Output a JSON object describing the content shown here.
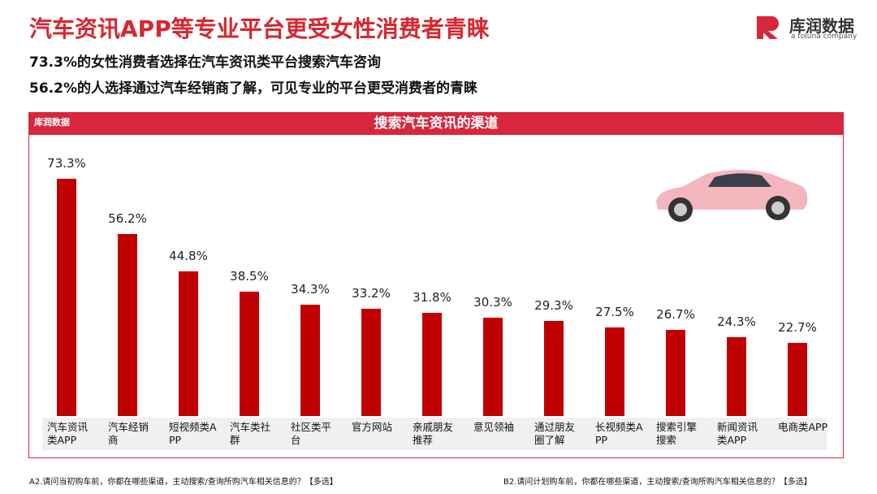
{
  "brand": {
    "name": "库润数据",
    "tagline": "a toluna company"
  },
  "chart_data": {
    "type": "bar",
    "title": "汽车资讯APP等专业平台更受女性消费者青睐",
    "subtitles": [
      "73.3%的女性消费者选择在汽车资讯类平台搜索汽车咨询",
      "56.2%的人选择通过汽车经销商了解，可见专业的平台更受消费者的青睐"
    ],
    "chart_title": "搜索汽车资讯的渠道",
    "categories": [
      "汽车资讯类APP",
      "汽车经销商",
      "短视频类APP",
      "汽车类社群",
      "社区类平台",
      "官方网站",
      "亲戚朋友推荐",
      "意见领袖",
      "通过朋友圈了解",
      "长视频类APP",
      "搜索引擎搜索",
      "新闻资讯类APP",
      "电商类APP"
    ],
    "values": [
      73.3,
      56.2,
      44.8,
      38.5,
      34.3,
      33.2,
      31.8,
      30.3,
      29.3,
      27.5,
      26.7,
      24.3,
      22.7
    ],
    "value_labels": [
      "73.3%",
      "56.2%",
      "44.8%",
      "38.5%",
      "34.3%",
      "33.2%",
      "31.8%",
      "30.3%",
      "29.3%",
      "27.5%",
      "26.7%",
      "24.3%",
      "22.7%"
    ],
    "color": "#c00000",
    "notes": [
      "A2.请问当初购车前，你都在哪些渠道，主动搜索/查询所购汽车相关信息的？【多选】",
      "B2.请问计划购车前，你都在哪些渠道，主动搜索/查询所购汽车相关信息的？【多选】"
    ]
  }
}
